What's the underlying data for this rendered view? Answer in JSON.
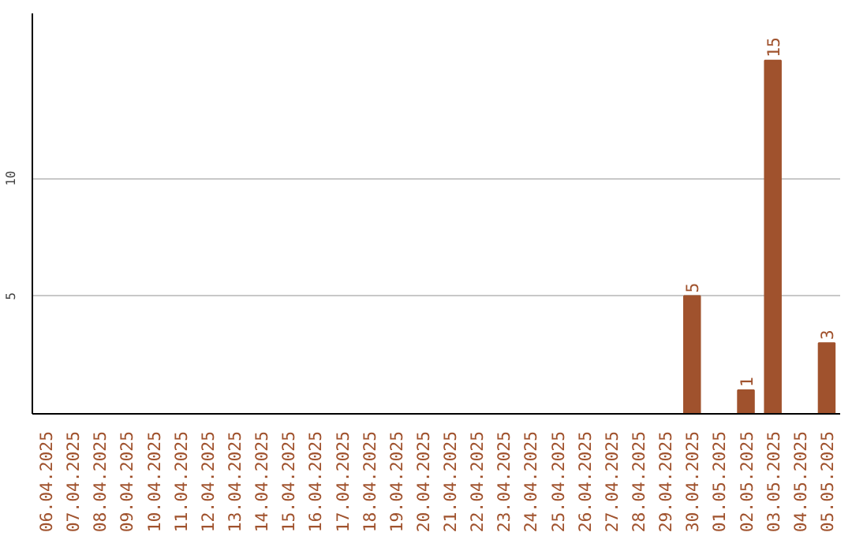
{
  "chart_data": {
    "type": "bar",
    "categories": [
      "06.04.2025",
      "07.04.2025",
      "08.04.2025",
      "09.04.2025",
      "10.04.2025",
      "11.04.2025",
      "12.04.2025",
      "13.04.2025",
      "14.04.2025",
      "15.04.2025",
      "16.04.2025",
      "17.04.2025",
      "18.04.2025",
      "19.04.2025",
      "20.04.2025",
      "21.04.2025",
      "22.04.2025",
      "23.04.2025",
      "24.04.2025",
      "25.04.2025",
      "26.04.2025",
      "27.04.2025",
      "28.04.2025",
      "29.04.2025",
      "30.04.2025",
      "01.05.2025",
      "02.05.2025",
      "03.05.2025",
      "04.05.2025",
      "05.05.2025"
    ],
    "values": [
      0,
      0,
      0,
      0,
      0,
      0,
      0,
      0,
      0,
      0,
      0,
      0,
      0,
      0,
      0,
      0,
      0,
      0,
      0,
      0,
      0,
      0,
      0,
      0,
      5,
      0,
      1,
      15,
      0,
      3
    ],
    "value_labels": [
      null,
      null,
      null,
      null,
      null,
      null,
      null,
      null,
      null,
      null,
      null,
      null,
      null,
      null,
      null,
      null,
      null,
      null,
      null,
      null,
      null,
      null,
      null,
      null,
      "5",
      null,
      "1",
      "15",
      null,
      "3"
    ],
    "color": "#a0522d",
    "ylim": [
      0,
      17
    ],
    "yticks": [
      5,
      10
    ],
    "grid": "y"
  }
}
